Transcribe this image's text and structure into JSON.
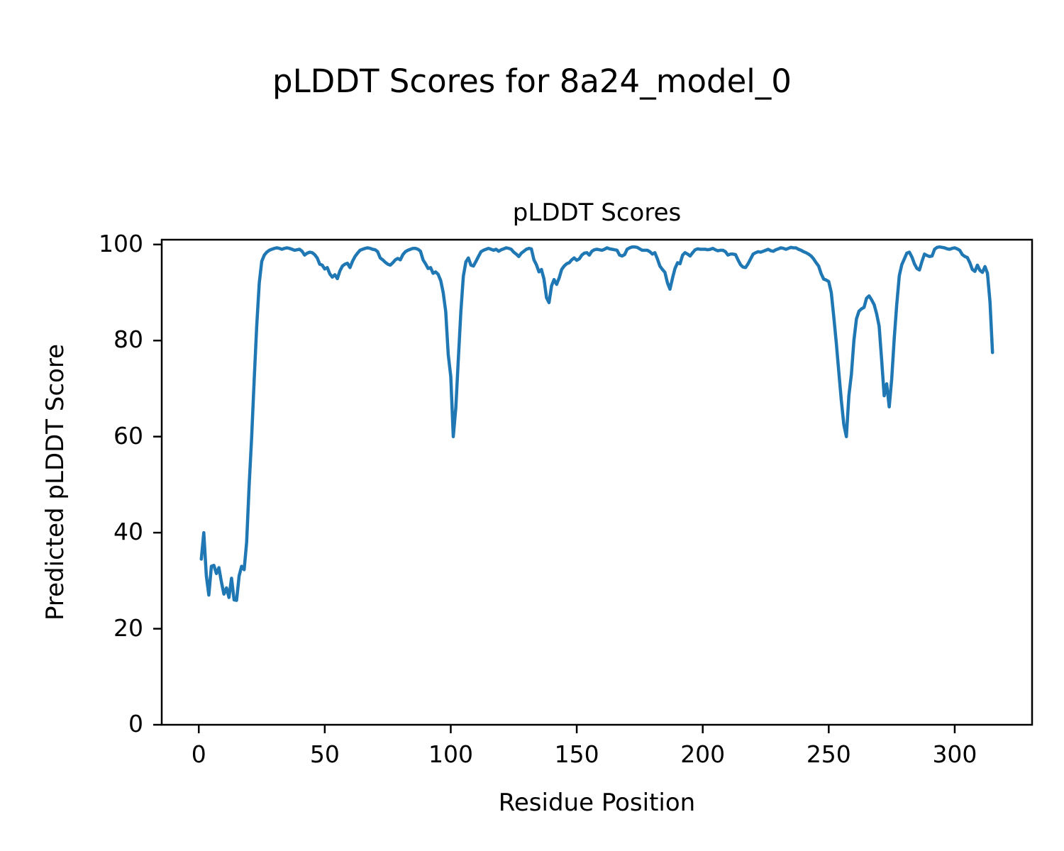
{
  "figure_title": "pLDDT Scores for 8a24_model_0",
  "chart_data": {
    "type": "line",
    "title": "pLDDT Scores",
    "xlabel": "Residue Position",
    "ylabel": "Predicted pLDDT Score",
    "x_ticks": [
      0,
      50,
      100,
      150,
      200,
      250,
      300
    ],
    "y_ticks": [
      0,
      20,
      40,
      60,
      80,
      100
    ],
    "xlim": [
      -14.7,
      330.7
    ],
    "ylim": [
      0,
      101
    ],
    "grid": false,
    "legend_position": "none",
    "line_color": "#1f77b4",
    "series": [
      {
        "name": "pLDDT",
        "x_start": 1,
        "x_step": 1,
        "values": [
          34.5,
          40.0,
          31.0,
          27.0,
          33.0,
          33.2,
          31.5,
          32.7,
          29.7,
          27.2,
          28.5,
          26.5,
          30.5,
          26.0,
          25.9,
          31.0,
          33.0,
          32.3,
          38.0,
          50.0,
          60.0,
          72.0,
          83.0,
          92.0,
          96.5,
          97.8,
          98.4,
          98.8,
          99.0,
          99.2,
          99.3,
          99.2,
          99.0,
          99.2,
          99.3,
          99.2,
          99.0,
          98.8,
          98.9,
          99.0,
          98.6,
          97.8,
          98.2,
          98.4,
          98.3,
          97.9,
          97.2,
          95.9,
          95.7,
          94.9,
          95.2,
          93.9,
          93.2,
          93.7,
          92.9,
          94.5,
          95.5,
          95.9,
          96.1,
          95.2,
          96.5,
          97.5,
          98.2,
          98.8,
          99.0,
          99.2,
          99.3,
          99.2,
          99.0,
          98.9,
          98.5,
          97.2,
          96.8,
          96.3,
          95.9,
          95.7,
          96.2,
          96.8,
          97.1,
          96.8,
          97.9,
          98.5,
          98.8,
          99.0,
          99.2,
          99.2,
          99.0,
          98.6,
          96.8,
          96.0,
          95.0,
          95.2,
          94.0,
          94.3,
          93.8,
          92.5,
          90.0,
          86.0,
          77.1,
          72.5,
          60.0,
          66.0,
          76.0,
          86.0,
          93.4,
          96.4,
          97.2,
          95.7,
          95.5,
          96.5,
          97.5,
          98.5,
          98.8,
          99.0,
          99.2,
          99.0,
          98.8,
          99.0,
          98.6,
          98.9,
          99.1,
          99.3,
          99.2,
          99.0,
          98.4,
          98.0,
          97.5,
          98.2,
          98.6,
          99.0,
          99.2,
          99.1,
          96.8,
          95.8,
          94.3,
          94.8,
          92.8,
          88.9,
          87.9,
          91.4,
          92.7,
          91.7,
          93.0,
          94.8,
          95.5,
          96.0,
          96.2,
          96.8,
          97.2,
          96.7,
          97.0,
          97.8,
          98.2,
          98.3,
          97.8,
          98.6,
          98.9,
          99.0,
          98.9,
          98.8,
          99.0,
          99.3,
          99.1,
          99.0,
          98.9,
          98.8,
          97.8,
          97.6,
          97.9,
          99.0,
          99.3,
          99.5,
          99.5,
          99.4,
          99.1,
          98.8,
          98.8,
          98.8,
          98.5,
          98.0,
          98.3,
          97.0,
          95.5,
          94.8,
          94.2,
          92.0,
          90.7,
          93.0,
          95.0,
          96.2,
          96.0,
          97.8,
          98.3,
          98.0,
          97.6,
          98.3,
          98.9,
          99.1,
          99.0,
          99.0,
          99.0,
          98.9,
          99.0,
          99.2,
          98.9,
          98.7,
          98.8,
          98.8,
          98.5,
          97.8,
          98.0,
          98.0,
          97.9,
          96.8,
          95.8,
          95.3,
          95.2,
          96.0,
          97.0,
          98.0,
          98.3,
          98.5,
          98.4,
          98.6,
          98.8,
          99.0,
          98.7,
          98.6,
          98.9,
          99.1,
          99.3,
          99.2,
          99.0,
          99.2,
          99.4,
          99.3,
          99.3,
          99.0,
          98.8,
          98.5,
          98.3,
          98.0,
          97.6,
          97.0,
          96.2,
          95.5,
          93.9,
          92.8,
          92.6,
          92.3,
          90.0,
          85.0,
          79.5,
          73.5,
          67.5,
          62.5,
          60.0,
          68.5,
          73.0,
          80.0,
          84.5,
          86.1,
          86.6,
          86.9,
          88.8,
          89.3,
          88.5,
          87.5,
          85.6,
          83.0,
          76.0,
          68.5,
          71.0,
          66.2,
          72.0,
          80.5,
          87.5,
          93.5,
          95.8,
          97.0,
          98.2,
          98.4,
          97.4,
          96.0,
          95.0,
          94.7,
          96.5,
          98.0,
          97.7,
          97.5,
          97.6,
          99.0,
          99.4,
          99.5,
          99.4,
          99.3,
          99.1,
          99.0,
          99.2,
          99.3,
          99.1,
          98.8,
          97.9,
          97.5,
          97.3,
          96.2,
          94.8,
          94.4,
          95.7,
          94.6,
          94.2,
          95.4,
          94.0,
          88.0,
          77.5
        ]
      }
    ]
  }
}
